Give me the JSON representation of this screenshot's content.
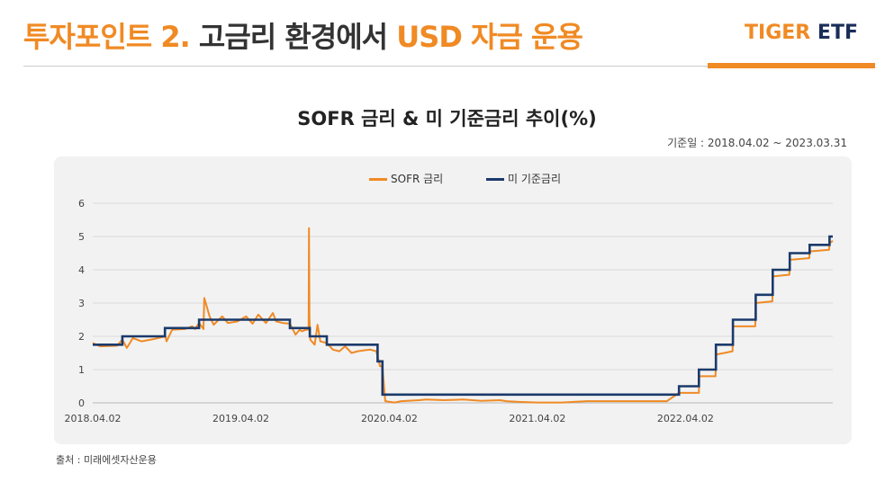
{
  "header": {
    "title_part1": "투자포인트 2.",
    "title_part2": "고금리 환경에서",
    "title_part3": "USD 자금 운용",
    "logo_part1": "TIGER",
    "logo_part2": "ETF"
  },
  "basis_date": "기준일 : 2018.04.02 ~ 2023.03.31",
  "source": "출처 : 미래에셋자산운용",
  "colors": {
    "accent": "#F08A24",
    "navy": "#1B3A6B",
    "panel": "#F2F2F2"
  },
  "chart_data": {
    "type": "line",
    "title": "SOFR 금리 & 미 기준금리 추이(%)",
    "ylim": [
      0,
      6
    ],
    "yticks": [
      "0",
      "1",
      "2",
      "3",
      "4",
      "5",
      "6"
    ],
    "x_start": "2018.04.02",
    "x_end": "2023.03.31",
    "xticks": [
      "2018.04.02",
      "2019.04.02",
      "2020.04.02",
      "2021.04.02",
      "2022.04.02"
    ],
    "grid": true,
    "legend_position": "top-center",
    "series": [
      {
        "name": "SOFR 금리",
        "color": "#F08A24",
        "points": [
          [
            "2018.04.02",
            1.8
          ],
          [
            "2018.04.20",
            1.7
          ],
          [
            "2018.06.01",
            1.72
          ],
          [
            "2018.06.14",
            1.9
          ],
          [
            "2018.06.25",
            1.65
          ],
          [
            "2018.07.10",
            1.95
          ],
          [
            "2018.07.31",
            1.85
          ],
          [
            "2018.08.31",
            1.92
          ],
          [
            "2018.09.28",
            2.0
          ],
          [
            "2018.10.01",
            1.85
          ],
          [
            "2018.10.15",
            2.2
          ],
          [
            "2018.11.15",
            2.22
          ],
          [
            "2018.12.03",
            2.3
          ],
          [
            "2018.12.10",
            2.22
          ],
          [
            "2018.12.20",
            2.4
          ],
          [
            "2018.12.31",
            2.22
          ],
          [
            "2019.01.02",
            3.15
          ],
          [
            "2019.01.15",
            2.6
          ],
          [
            "2019.01.25",
            2.35
          ],
          [
            "2019.02.15",
            2.6
          ],
          [
            "2019.03.01",
            2.4
          ],
          [
            "2019.03.25",
            2.45
          ],
          [
            "2019.04.15",
            2.6
          ],
          [
            "2019.05.01",
            2.38
          ],
          [
            "2019.05.15",
            2.65
          ],
          [
            "2019.06.03",
            2.4
          ],
          [
            "2019.06.20",
            2.7
          ],
          [
            "2019.06.28",
            2.45
          ],
          [
            "2019.07.15",
            2.4
          ],
          [
            "2019.08.01",
            2.38
          ],
          [
            "2019.08.15",
            2.05
          ],
          [
            "2019.08.25",
            2.2
          ],
          [
            "2019.08.31",
            2.15
          ],
          [
            "2019.09.10",
            2.2
          ],
          [
            "2019.09.16",
            2.2
          ],
          [
            "2019.09.17",
            5.25
          ],
          [
            "2019.09.18",
            2.55
          ],
          [
            "2019.09.20",
            1.9
          ],
          [
            "2019.10.01",
            1.75
          ],
          [
            "2019.10.08",
            2.35
          ],
          [
            "2019.10.15",
            1.85
          ],
          [
            "2019.10.31",
            1.8
          ],
          [
            "2019.11.15",
            1.6
          ],
          [
            "2019.12.01",
            1.55
          ],
          [
            "2019.12.15",
            1.7
          ],
          [
            "2019.12.31",
            1.5
          ],
          [
            "2020.01.15",
            1.55
          ],
          [
            "2020.02.01",
            1.58
          ],
          [
            "2020.02.15",
            1.6
          ],
          [
            "2020.03.01",
            1.55
          ],
          [
            "2020.03.10",
            1.1
          ],
          [
            "2020.03.16",
            1.1
          ],
          [
            "2020.03.23",
            0.05
          ],
          [
            "2020.04.15",
            0.01
          ],
          [
            "2020.05.01",
            0.05
          ],
          [
            "2020.06.15",
            0.08
          ],
          [
            "2020.07.01",
            0.1
          ],
          [
            "2020.08.15",
            0.08
          ],
          [
            "2020.10.01",
            0.1
          ],
          [
            "2020.11.15",
            0.06
          ],
          [
            "2020.12.31",
            0.08
          ],
          [
            "2021.01.15",
            0.05
          ],
          [
            "2021.02.15",
            0.03
          ],
          [
            "2021.04.01",
            0.01
          ],
          [
            "2021.06.01",
            0.01
          ],
          [
            "2021.08.01",
            0.05
          ],
          [
            "2021.10.01",
            0.05
          ],
          [
            "2021.12.01",
            0.05
          ],
          [
            "2022.02.15",
            0.05
          ],
          [
            "2022.03.17",
            0.3
          ],
          [
            "2022.05.05",
            0.3
          ],
          [
            "2022.05.06",
            0.8
          ],
          [
            "2022.06.15",
            0.8
          ],
          [
            "2022.06.16",
            1.45
          ],
          [
            "2022.07.27",
            1.55
          ],
          [
            "2022.07.28",
            2.3
          ],
          [
            "2022.09.21",
            2.3
          ],
          [
            "2022.09.22",
            3.0
          ],
          [
            "2022.11.02",
            3.05
          ],
          [
            "2022.11.03",
            3.8
          ],
          [
            "2022.12.14",
            3.85
          ],
          [
            "2022.12.15",
            4.3
          ],
          [
            "2023.02.01",
            4.35
          ],
          [
            "2023.02.02",
            4.55
          ],
          [
            "2023.03.22",
            4.6
          ],
          [
            "2023.03.23",
            4.8
          ],
          [
            "2023.03.31",
            4.87
          ]
        ]
      },
      {
        "name": "미 기준금리",
        "color": "#1B3A6B",
        "points": [
          [
            "2018.04.02",
            1.75
          ],
          [
            "2018.06.14",
            2.0
          ],
          [
            "2018.09.27",
            2.25
          ],
          [
            "2018.12.20",
            2.5
          ],
          [
            "2019.08.01",
            2.25
          ],
          [
            "2019.09.19",
            2.0
          ],
          [
            "2019.10.31",
            1.75
          ],
          [
            "2020.03.04",
            1.25
          ],
          [
            "2020.03.16",
            0.25
          ],
          [
            "2022.03.17",
            0.5
          ],
          [
            "2022.05.05",
            1.0
          ],
          [
            "2022.06.16",
            1.75
          ],
          [
            "2022.07.28",
            2.5
          ],
          [
            "2022.09.22",
            3.25
          ],
          [
            "2022.11.03",
            4.0
          ],
          [
            "2022.12.15",
            4.5
          ],
          [
            "2023.02.02",
            4.75
          ],
          [
            "2023.03.23",
            5.0
          ],
          [
            "2023.03.31",
            5.0
          ]
        ]
      }
    ]
  }
}
